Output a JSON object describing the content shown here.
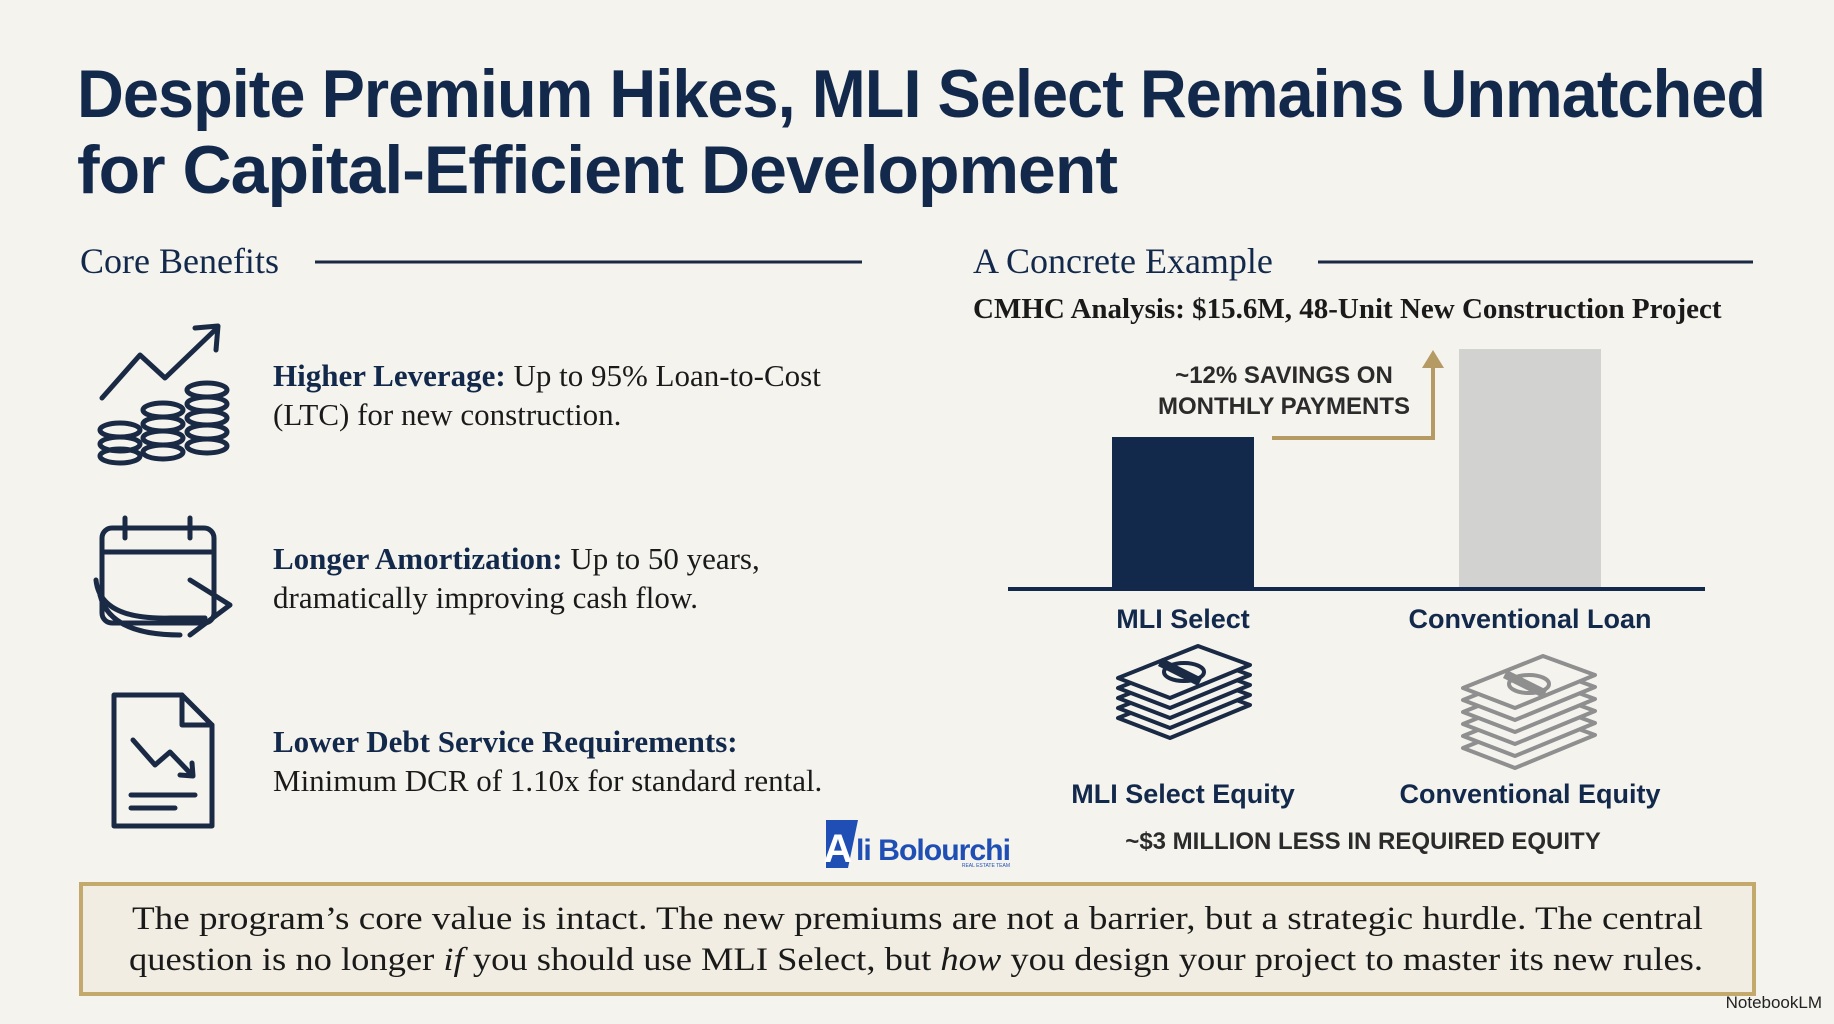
{
  "title": {
    "lines": [
      "Despite Premium Hikes, MLI Select Remains Unmatched",
      "for Capital-Efficient Development"
    ]
  },
  "core_benefits": {
    "heading": "Core Benefits",
    "items": [
      {
        "label": "Higher Leverage:",
        "lines": [
          "Up to 95% Loan-to-Cost",
          "(LTC) for new construction."
        ]
      },
      {
        "label": "Longer Amortization:",
        "lines": [
          "Up to 50 years,",
          "dramatically improving cash flow."
        ]
      },
      {
        "label": "Lower Debt Service Requirements:",
        "lines": [
          "",
          "Minimum DCR of 1.10x for standard rental."
        ]
      }
    ]
  },
  "example": {
    "heading": "A Concrete Example",
    "subtitle": "CMHC Analysis: $15.6M, 48-Unit New Construction Project",
    "callout": [
      "~12% SAVINGS ON",
      "MONTHLY PAYMENTS"
    ],
    "bar_labels": [
      "MLI Select",
      "Conventional Loan"
    ],
    "equity_labels": [
      "MLI Select Equity",
      "Conventional Equity"
    ],
    "equity_note": "~$3 MILLION LESS IN REQUIRED EQUITY"
  },
  "logo": {
    "mark": "A",
    "name": "li Bolourchi",
    "tagline": "REAL ESTATE TEAM"
  },
  "conclusion": {
    "lines": [
      [
        {
          "text": "The program’s core value is intact. The new premiums are not a barrier, but a strategic hurdle. The central",
          "italic": false
        }
      ],
      [
        {
          "text": "question is no longer ",
          "italic": false
        },
        {
          "text": "if",
          "italic": true
        },
        {
          "text": " you should use MLI Select, but ",
          "italic": false
        },
        {
          "text": "how",
          "italic": true
        },
        {
          "text": " you design your project to master its new rules.",
          "italic": false
        }
      ]
    ]
  },
  "watermark": "NotebookLM"
}
